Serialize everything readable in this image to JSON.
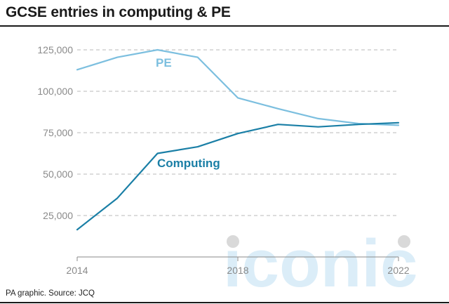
{
  "title": "GCSE entries in computing & PE",
  "source": "PA graphic. Source: JCQ",
  "watermark": "iconic",
  "colors": {
    "pe": "#7cbfdf",
    "computing": "#1a7fa6",
    "grid": "#b9b9b9",
    "axis": "#8a8a8a",
    "watermark": "#cfe7f5",
    "watermark_dots": "#d9d9d9"
  },
  "chart_data": {
    "type": "line",
    "x": [
      2014,
      2015,
      2016,
      2017,
      2018,
      2019,
      2020,
      2021,
      2022
    ],
    "series": [
      {
        "name": "PE",
        "values": [
          113000,
          120500,
          125000,
          120500,
          96000,
          89500,
          83500,
          80500,
          79500
        ]
      },
      {
        "name": "Computing",
        "values": [
          16500,
          35500,
          62500,
          66500,
          74500,
          80000,
          78500,
          80000,
          81000
        ]
      }
    ],
    "xticks": [
      2014,
      2018,
      2022
    ],
    "xtick_labels": [
      "2014",
      "2018",
      "2022"
    ],
    "yticks": [
      25000,
      50000,
      75000,
      100000,
      125000
    ],
    "ytick_labels": [
      "25,000",
      "50,000",
      "75,000",
      "100,000",
      "125,000"
    ],
    "xlim": [
      2014,
      2022
    ],
    "ylim": [
      0,
      130000
    ],
    "grid": "horizontal dashed"
  }
}
